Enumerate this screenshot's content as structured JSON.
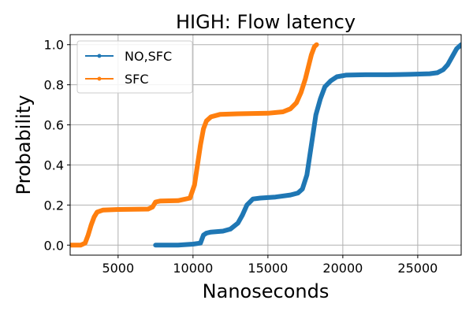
{
  "chart_data": {
    "type": "line",
    "title": "HIGH: Flow latency",
    "xlabel": "Nanoseconds",
    "ylabel": "Probability",
    "xlim": [
      1800,
      27900
    ],
    "ylim": [
      -0.05,
      1.05
    ],
    "xticks": [
      5000,
      10000,
      15000,
      20000,
      25000
    ],
    "yticks": [
      0.0,
      0.2,
      0.4,
      0.6,
      0.8,
      1.0
    ],
    "ytick_labels": [
      "0.0",
      "0.2",
      "0.4",
      "0.6",
      "0.8",
      "1.0"
    ],
    "grid": true,
    "legend_position": "top-left",
    "series": [
      {
        "name": "NO,SFC",
        "color": "#1f77b4",
        "x": [
          7500,
          9000,
          10000,
          10500,
          10700,
          10900,
          11200,
          12000,
          12500,
          13000,
          13300,
          13600,
          14000,
          14500,
          15500,
          16500,
          17000,
          17300,
          17600,
          17800,
          18000,
          18200,
          18500,
          18800,
          19200,
          19600,
          20200,
          21500,
          23000,
          24500,
          25800,
          26300,
          26700,
          27000,
          27300,
          27600,
          27900
        ],
        "y": [
          0.0,
          0.0,
          0.005,
          0.01,
          0.05,
          0.06,
          0.065,
          0.07,
          0.08,
          0.11,
          0.15,
          0.2,
          0.23,
          0.235,
          0.24,
          0.25,
          0.26,
          0.28,
          0.35,
          0.45,
          0.55,
          0.65,
          0.73,
          0.79,
          0.82,
          0.84,
          0.848,
          0.85,
          0.85,
          0.852,
          0.855,
          0.86,
          0.875,
          0.9,
          0.94,
          0.98,
          1.0
        ]
      },
      {
        "name": "SFC",
        "color": "#ff7f0e",
        "x": [
          1800,
          2500,
          2800,
          3000,
          3200,
          3400,
          3600,
          4000,
          5000,
          7000,
          7300,
          7500,
          7800,
          9000,
          9800,
          10100,
          10300,
          10500,
          10700,
          10900,
          11200,
          11800,
          13000,
          15000,
          16000,
          16500,
          16900,
          17200,
          17500,
          17700,
          17900,
          18100,
          18250
        ],
        "y": [
          0.0,
          0.0,
          0.01,
          0.05,
          0.1,
          0.14,
          0.165,
          0.175,
          0.178,
          0.18,
          0.19,
          0.215,
          0.22,
          0.222,
          0.235,
          0.3,
          0.4,
          0.5,
          0.58,
          0.62,
          0.64,
          0.652,
          0.655,
          0.658,
          0.665,
          0.68,
          0.71,
          0.76,
          0.83,
          0.89,
          0.95,
          0.99,
          1.0
        ]
      }
    ]
  }
}
